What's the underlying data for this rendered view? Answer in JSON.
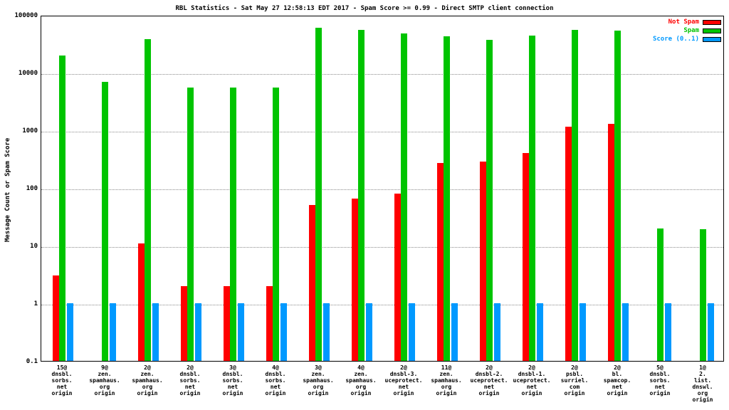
{
  "chart_data": {
    "type": "bar",
    "scale": "log",
    "title": "RBL Statistics - Sat May 27 12:58:13 EDT 2017 - Spam Score >= 0.99 - Direct SMTP client connection",
    "ylabel": "Message Count or Spam Score",
    "ylim": [
      0.1,
      100000
    ],
    "yticks": [
      "0.1",
      "1",
      "10",
      "100",
      "1000",
      "10000",
      "100000"
    ],
    "grid": "dotted horizontal at decades",
    "legend_position": "top-right",
    "categories": [
      [
        "15@",
        "dnsbl.",
        "sorbs.",
        "net",
        "origin"
      ],
      [
        "9@",
        "zen.",
        "spamhaus.",
        "org",
        "origin"
      ],
      [
        "2@",
        "zen.",
        "spamhaus.",
        "org",
        "origin"
      ],
      [
        "2@",
        "dnsbl.",
        "sorbs.",
        "net",
        "origin"
      ],
      [
        "3@",
        "dnsbl.",
        "sorbs.",
        "net",
        "origin"
      ],
      [
        "4@",
        "dnsbl.",
        "sorbs.",
        "net",
        "origin"
      ],
      [
        "3@",
        "zen.",
        "spamhaus.",
        "org",
        "origin"
      ],
      [
        "4@",
        "zen.",
        "spamhaus.",
        "org",
        "origin"
      ],
      [
        "2@",
        "dnsbl-3.",
        "uceprotect.",
        "net",
        "origin"
      ],
      [
        "11@",
        "zen.",
        "spamhaus.",
        "org",
        "origin"
      ],
      [
        "2@",
        "dnsbl-2.",
        "uceprotect.",
        "net",
        "origin"
      ],
      [
        "2@",
        "dnsbl-1.",
        "uceprotect.",
        "net",
        "origin"
      ],
      [
        "2@",
        "psbl.",
        "surriel.",
        "com",
        "origin"
      ],
      [
        "2@",
        "bl.",
        "spamcop.",
        "net",
        "origin"
      ],
      [
        "5@",
        "dnsbl.",
        "sorbs.",
        "net",
        "origin"
      ],
      [
        "1@",
        "2.",
        "list.",
        "dnswl.",
        "org",
        "origin"
      ]
    ],
    "series": [
      {
        "name": "Not Spam",
        "color": "#ff0000",
        "values": [
          3,
          0,
          11,
          2,
          2,
          2,
          50,
          65,
          80,
          270,
          290,
          400,
          1150,
          1300,
          0,
          0
        ]
      },
      {
        "name": "Spam",
        "color": "#00c400",
        "values": [
          20000,
          7000,
          38000,
          5500,
          5500,
          5500,
          60000,
          55000,
          48000,
          43000,
          37000,
          44000,
          55000,
          53000,
          20,
          19
        ]
      },
      {
        "name": "Score (0..1)",
        "color": "#0099ff",
        "values": [
          1,
          1,
          1,
          1,
          1,
          1,
          1,
          1,
          1,
          1,
          1,
          1,
          1,
          1,
          1,
          1
        ]
      }
    ]
  }
}
